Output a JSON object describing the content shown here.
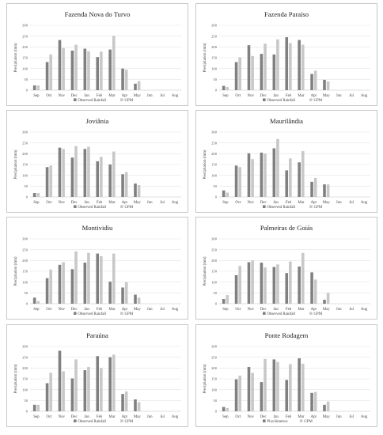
{
  "chart_data": [
    {
      "type": "bar",
      "title": "Fazenda Nova do Turvo",
      "categories": [
        "Sep",
        "Oct",
        "Nov",
        "Dec",
        "Jan",
        "Feb",
        "Mar",
        "Apr",
        "May",
        "Jun",
        "Jul",
        "Aug"
      ],
      "ylabel": "Precipitation (mm)",
      "ylim": [
        0,
        300
      ],
      "yticks": [
        0,
        50,
        100,
        150,
        200,
        250,
        300
      ],
      "legend_position": "bottom",
      "grid": true,
      "series": [
        {
          "name": "Observed Rainfall",
          "color": "#808080",
          "values": [
            22,
            130,
            232,
            183,
            192,
            153,
            188,
            100,
            30,
            0,
            0,
            0
          ]
        },
        {
          "name": "GPM",
          "color": "#c8c8c8",
          "values": [
            22,
            165,
            195,
            210,
            180,
            178,
            252,
            95,
            42,
            0,
            0,
            0
          ]
        }
      ]
    },
    {
      "type": "bar",
      "title": "Fazenda Paraíso",
      "categories": [
        "Sep",
        "Oct",
        "Nov",
        "Dec",
        "Jan",
        "Feb",
        "Mar",
        "Apr",
        "May",
        "Jun",
        "Jul",
        "Aug"
      ],
      "ylabel": "Precipitation (mm)",
      "ylim": [
        0,
        300
      ],
      "yticks": [
        0,
        50,
        100,
        150,
        200,
        250,
        300
      ],
      "legend_position": "bottom",
      "grid": true,
      "series": [
        {
          "name": "Observed Rainfall",
          "color": "#808080",
          "values": [
            20,
            130,
            208,
            168,
            165,
            245,
            232,
            75,
            48,
            0,
            0,
            0
          ]
        },
        {
          "name": "GPM",
          "color": "#c8c8c8",
          "values": [
            15,
            152,
            158,
            215,
            235,
            218,
            210,
            90,
            40,
            0,
            0,
            0
          ]
        }
      ]
    },
    {
      "type": "bar",
      "title": "Joviânia",
      "categories": [
        "Sep",
        "Oct",
        "Nov",
        "Dec",
        "Jan",
        "Feb",
        "Mar",
        "Apr",
        "May",
        "Jun",
        "Jul",
        "Aug"
      ],
      "ylabel": "Precipitation (mm)",
      "ylim": [
        0,
        300
      ],
      "yticks": [
        0,
        50,
        100,
        150,
        200,
        250,
        300
      ],
      "legend_position": "bottom",
      "grid": true,
      "series": [
        {
          "name": "Observed Rainfall",
          "color": "#808080",
          "values": [
            18,
            138,
            228,
            182,
            222,
            165,
            150,
            105,
            62,
            0,
            0,
            0
          ]
        },
        {
          "name": "GPM",
          "color": "#c8c8c8",
          "values": [
            18,
            145,
            222,
            235,
            232,
            185,
            210,
            115,
            55,
            0,
            0,
            0
          ]
        }
      ]
    },
    {
      "type": "bar",
      "title": "Maurilândia",
      "categories": [
        "Sep",
        "Oct",
        "Nov",
        "Dec",
        "Jan",
        "Feb",
        "Mar",
        "Apr",
        "May",
        "Jun",
        "Jul",
        "Aug"
      ],
      "ylabel": "Precipitation (mm)",
      "ylim": [
        0,
        300
      ],
      "yticks": [
        0,
        50,
        100,
        150,
        200,
        250,
        300
      ],
      "legend_position": "bottom",
      "grid": true,
      "series": [
        {
          "name": "Observed Rainfall",
          "color": "#808080",
          "values": [
            30,
            145,
            202,
            205,
            225,
            123,
            160,
            70,
            58,
            0,
            0,
            0
          ]
        },
        {
          "name": "GPM",
          "color": "#c8c8c8",
          "values": [
            20,
            138,
            175,
            200,
            268,
            178,
            212,
            88,
            58,
            0,
            0,
            0
          ]
        }
      ]
    },
    {
      "type": "bar",
      "title": "Montividiu",
      "categories": [
        "Sep",
        "Oct",
        "Nov",
        "Dec",
        "Jan",
        "Feb",
        "Mar",
        "Apr",
        "May",
        "Jun",
        "Jul",
        "Aug"
      ],
      "ylabel": "Precipitation (mm)",
      "ylim": [
        0,
        300
      ],
      "yticks": [
        0,
        50,
        100,
        150,
        200,
        250,
        300
      ],
      "legend_position": "bottom",
      "grid": true,
      "series": [
        {
          "name": "Observed Rainfall",
          "color": "#808080",
          "values": [
            28,
            118,
            180,
            160,
            190,
            232,
            102,
            75,
            42,
            0,
            0,
            0
          ]
        },
        {
          "name": "GPM",
          "color": "#c8c8c8",
          "values": [
            12,
            158,
            192,
            242,
            235,
            220,
            232,
            100,
            28,
            0,
            0,
            0
          ]
        }
      ]
    },
    {
      "type": "bar",
      "title": "Palmeiras de Goiás",
      "categories": [
        "Sep",
        "Oct",
        "Nov",
        "Dec",
        "Jan",
        "Feb",
        "Mar",
        "Apr",
        "May",
        "Jun",
        "Jul",
        "Aug"
      ],
      "ylabel": "Precipitation (mm)",
      "ylim": [
        0,
        300
      ],
      "yticks": [
        0,
        50,
        100,
        150,
        200,
        250,
        300
      ],
      "legend_position": "bottom",
      "grid": true,
      "series": [
        {
          "name": "Observed Rainfall",
          "color": "#808080",
          "values": [
            22,
            132,
            192,
            190,
            170,
            142,
            172,
            145,
            18,
            0,
            0,
            0
          ]
        },
        {
          "name": "GPM",
          "color": "#c8c8c8",
          "values": [
            40,
            175,
            200,
            168,
            182,
            195,
            235,
            112,
            50,
            0,
            0,
            0
          ]
        }
      ]
    },
    {
      "type": "bar",
      "title": "Paraúna",
      "categories": [
        "Sep",
        "Oct",
        "Nov",
        "Dec",
        "Jan",
        "Feb",
        "Mar",
        "Apr",
        "May",
        "Jun",
        "Jul",
        "Aug"
      ],
      "ylabel": "Precipitation (mm)",
      "ylim": [
        0,
        300
      ],
      "yticks": [
        0,
        50,
        100,
        150,
        200,
        250,
        300
      ],
      "legend_position": "bottom",
      "grid": true,
      "series": [
        {
          "name": "Observed Rainfall",
          "color": "#808080",
          "values": [
            30,
            130,
            280,
            152,
            190,
            255,
            250,
            80,
            55,
            0,
            0,
            0
          ]
        },
        {
          "name": "GPM",
          "color": "#c8c8c8",
          "values": [
            30,
            178,
            185,
            240,
            205,
            200,
            262,
            92,
            42,
            0,
            0,
            0
          ]
        }
      ]
    },
    {
      "type": "bar",
      "title": "Ponte Rodagem",
      "categories": [
        "Sep",
        "Oct",
        "Nov",
        "Dec",
        "Jan",
        "Feb",
        "Mar",
        "Apr",
        "May",
        "Jun",
        "Jul",
        "Aug"
      ],
      "ylabel": "Precipitation (mm)",
      "ylim": [
        0,
        300
      ],
      "yticks": [
        0,
        50,
        100,
        150,
        200,
        250,
        300
      ],
      "legend_position": "bottom",
      "grid": true,
      "series": [
        {
          "name": "Pluviômetros",
          "color": "#808080",
          "values": [
            20,
            148,
            205,
            135,
            240,
            145,
            245,
            85,
            30,
            0,
            0,
            0
          ]
        },
        {
          "name": "GPM",
          "color": "#c8c8c8",
          "values": [
            15,
            165,
            178,
            242,
            228,
            218,
            220,
            90,
            45,
            0,
            0,
            0
          ]
        }
      ]
    }
  ]
}
